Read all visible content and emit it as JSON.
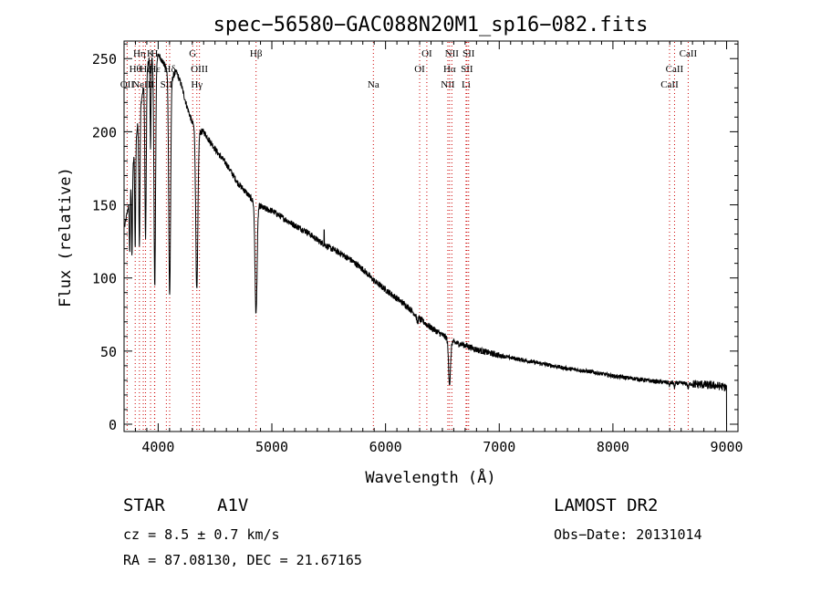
{
  "chart_data": {
    "type": "line",
    "title": "spec−56580−GAC088N20M1_sp16−082.fits",
    "xlabel": "Wavelength (Å)",
    "ylabel": "Flux (relative)",
    "xlim": [
      3700,
      9100
    ],
    "ylim": [
      -5,
      262
    ],
    "xticks": [
      4000,
      5000,
      6000,
      7000,
      8000,
      9000
    ],
    "yticks": [
      0,
      50,
      100,
      150,
      200,
      250
    ],
    "grid": false,
    "line_color": "#000000",
    "marker_color": "#cc0000",
    "continuum": [
      [
        3705,
        135
      ],
      [
        3740,
        150
      ],
      [
        3780,
        178
      ],
      [
        3820,
        205
      ],
      [
        3870,
        230
      ],
      [
        3920,
        250
      ],
      [
        3970,
        250
      ],
      [
        4010,
        252
      ],
      [
        4060,
        245
      ],
      [
        4110,
        236
      ],
      [
        4160,
        241
      ],
      [
        4200,
        233
      ],
      [
        4250,
        218
      ],
      [
        4300,
        206
      ],
      [
        4350,
        200
      ],
      [
        4400,
        200
      ],
      [
        4460,
        193
      ],
      [
        4520,
        186
      ],
      [
        4600,
        178
      ],
      [
        4700,
        165
      ],
      [
        4780,
        158
      ],
      [
        4850,
        151
      ],
      [
        4920,
        148
      ],
      [
        4950,
        147
      ],
      [
        5000,
        146
      ],
      [
        5100,
        141
      ],
      [
        5200,
        136
      ],
      [
        5300,
        132
      ],
      [
        5400,
        126
      ],
      [
        5500,
        121
      ],
      [
        5600,
        117
      ],
      [
        5700,
        112
      ],
      [
        5800,
        106
      ],
      [
        5900,
        98
      ],
      [
        6000,
        92
      ],
      [
        6100,
        86
      ],
      [
        6200,
        80
      ],
      [
        6300,
        72
      ],
      [
        6400,
        66
      ],
      [
        6500,
        61
      ],
      [
        6600,
        56
      ],
      [
        6700,
        54
      ],
      [
        6800,
        51
      ],
      [
        6900,
        49
      ],
      [
        7000,
        47
      ],
      [
        7200,
        44
      ],
      [
        7400,
        41
      ],
      [
        7600,
        38
      ],
      [
        7800,
        36
      ],
      [
        8000,
        33
      ],
      [
        8200,
        31
      ],
      [
        8400,
        29
      ],
      [
        8600,
        28
      ],
      [
        8800,
        27
      ],
      [
        8950,
        26
      ],
      [
        9000,
        25
      ]
    ],
    "absorption_lines": [
      {
        "center": 3750,
        "depth": 40,
        "width": 4
      },
      {
        "center": 3770,
        "depth": 55,
        "width": 4
      },
      {
        "center": 3798,
        "depth": 70,
        "width": 4
      },
      {
        "center": 3835,
        "depth": 90,
        "width": 5
      },
      {
        "center": 3889,
        "depth": 110,
        "width": 6
      },
      {
        "center": 3933,
        "depth": 60,
        "width": 4
      },
      {
        "center": 3970,
        "depth": 155,
        "width": 7
      },
      {
        "center": 4101,
        "depth": 150,
        "width": 8
      },
      {
        "center": 4340,
        "depth": 110,
        "width": 9
      },
      {
        "center": 4861,
        "depth": 75,
        "width": 9
      },
      {
        "center": 6563,
        "depth": 30,
        "width": 9
      },
      {
        "center": 6280,
        "depth": 4,
        "width": 6
      },
      {
        "center": 8498,
        "depth": 2,
        "width": 5
      },
      {
        "center": 8542,
        "depth": 3,
        "width": 5
      },
      {
        "center": 8662,
        "depth": 3,
        "width": 5
      }
    ],
    "emission_spikes": [
      {
        "center": 5460,
        "height": 10
      }
    ],
    "line_markers": [
      {
        "wave": 3727,
        "label": "OII",
        "row": 3
      },
      {
        "wave": 3798,
        "label": "Hθ",
        "row": 2
      },
      {
        "wave": 3835,
        "label": "Hη",
        "row": 1
      },
      {
        "wave": 3869,
        "label": "NeIII",
        "row": 3
      },
      {
        "wave": 3889,
        "label": "Hζ",
        "row": 2
      },
      {
        "wave": 3933,
        "label": "K",
        "row": 1
      },
      {
        "wave": 3968,
        "label": "H",
        "row": 1
      },
      {
        "wave": 3970,
        "label": "Hε",
        "row": 2
      },
      {
        "wave": 4072,
        "label": "SII",
        "row": 3
      },
      {
        "wave": 4101,
        "label": "Hδ",
        "row": 2
      },
      {
        "wave": 4304,
        "label": "G",
        "row": 1
      },
      {
        "wave": 4340,
        "label": "Hγ",
        "row": 3
      },
      {
        "wave": 4363,
        "label": "OIII",
        "row": 2
      },
      {
        "wave": 4861,
        "label": "Hβ",
        "row": 1
      },
      {
        "wave": 5893,
        "label": "Na",
        "row": 3
      },
      {
        "wave": 6300,
        "label": "OI",
        "row": 2
      },
      {
        "wave": 6363,
        "label": "OI",
        "row": 1
      },
      {
        "wave": 6548,
        "label": "NII",
        "row": 3
      },
      {
        "wave": 6563,
        "label": "Hα",
        "row": 2
      },
      {
        "wave": 6583,
        "label": "NII",
        "row": 1
      },
      {
        "wave": 6708,
        "label": "Li",
        "row": 3
      },
      {
        "wave": 6716,
        "label": "SII",
        "row": 2
      },
      {
        "wave": 6731,
        "label": "SII",
        "row": 1
      },
      {
        "wave": 8498,
        "label": "CaII",
        "row": 3
      },
      {
        "wave": 8542,
        "label": "CaII",
        "row": 2
      },
      {
        "wave": 8662,
        "label": "CaII",
        "row": 1
      }
    ]
  },
  "info": {
    "object_class": "STAR",
    "subclass": "A1V",
    "survey": "LAMOST DR2",
    "redshift_line": "cz = 8.5 ± 0.7 km/s",
    "obs_date_line": "Obs−Date: 20131014",
    "coords_line": "RA =  87.08130, DEC =  21.67165"
  }
}
